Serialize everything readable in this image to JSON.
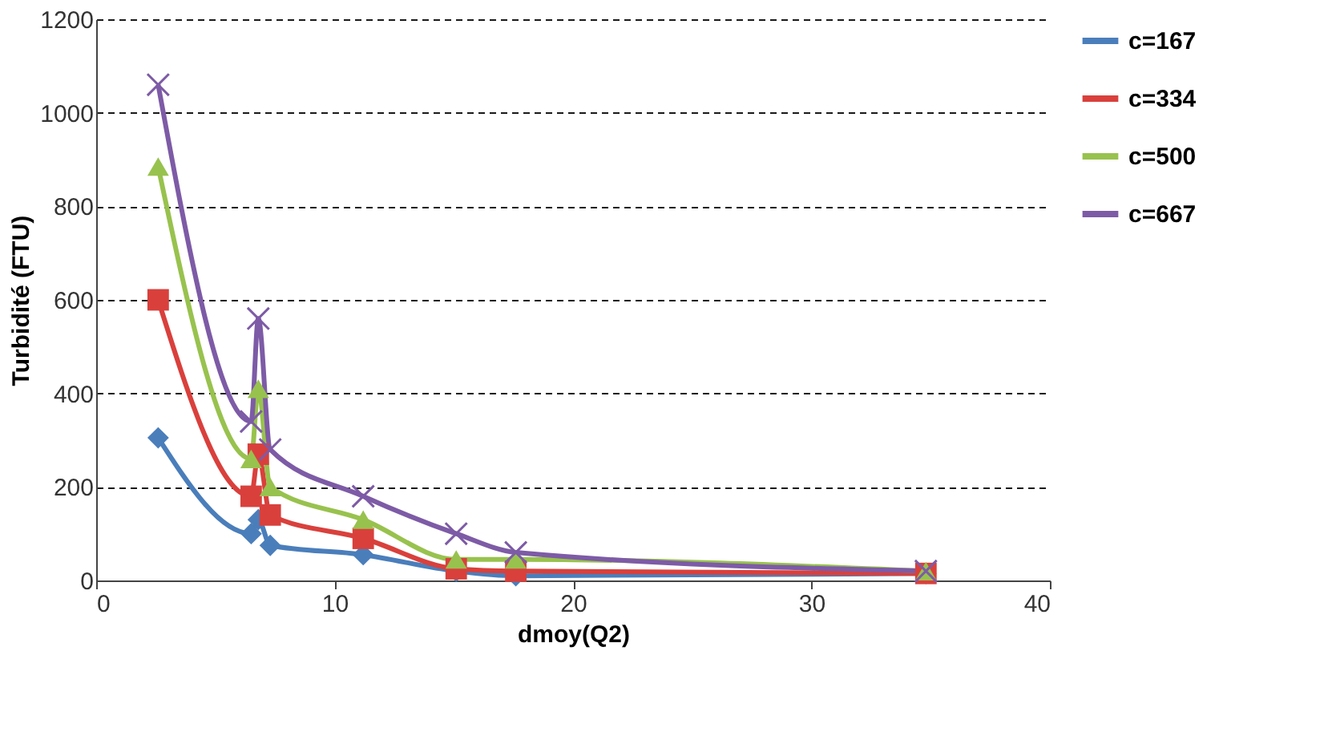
{
  "chart_data": {
    "type": "line",
    "xlabel": "dmoy(Q2)",
    "ylabel": "Turbidité (FTU)",
    "x": [
      2.6,
      6.5,
      6.8,
      7.3,
      11.2,
      15.1,
      17.6,
      34.8
    ],
    "series": [
      {
        "name": "c=167",
        "color": "#4a7ebb",
        "marker": "diamond",
        "values": [
          305,
          100,
          130,
          75,
          55,
          20,
          10,
          15
        ]
      },
      {
        "name": "c=334",
        "color": "#d9403c",
        "marker": "square",
        "values": [
          600,
          180,
          270,
          140,
          90,
          25,
          20,
          15
        ]
      },
      {
        "name": "c=500",
        "color": "#98c24e",
        "marker": "triangle",
        "values": [
          885,
          260,
          410,
          200,
          130,
          45,
          45,
          20
        ]
      },
      {
        "name": "c=667",
        "color": "#7d5ba6",
        "marker": "cross",
        "values": [
          1060,
          340,
          560,
          280,
          180,
          100,
          60,
          20
        ]
      }
    ],
    "xlim": [
      0,
      40
    ],
    "xticks": [
      0,
      10,
      20,
      30,
      40
    ],
    "ylim": [
      0,
      1200
    ],
    "yticks": [
      0,
      200,
      400,
      600,
      800,
      1000,
      1200
    ],
    "grid": "y",
    "legend": "right",
    "line_style": "solid"
  }
}
